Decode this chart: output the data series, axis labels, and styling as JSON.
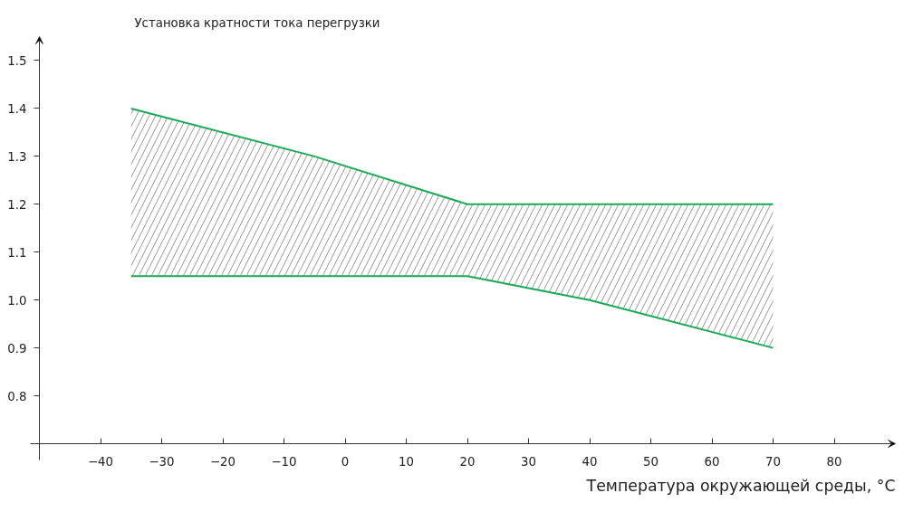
{
  "chart_data": {
    "type": "line",
    "ylabel": "Установка кратности тока перегрузки",
    "xlabel": "Температура окружающей среды, °C",
    "x": [
      -35,
      -5,
      20,
      40,
      70
    ],
    "series": [
      {
        "color": "#1aaa55",
        "values": [
          1.4,
          1.3,
          1.2,
          1.2,
          1.2
        ],
        "lower": [
          1.05,
          1.05,
          1.05,
          1.0,
          0.9
        ],
        "upper": [
          1.4,
          1.3,
          1.2,
          1.2,
          1.2
        ]
      },
      {
        "color": "#1aaa55",
        "values": [
          1.05,
          1.05,
          1.05,
          1.0,
          0.9
        ]
      }
    ],
    "xlim": [
      -50,
      90
    ],
    "ylim": [
      0.7,
      1.55
    ],
    "xticks": [
      -40,
      -30,
      -20,
      -10,
      0,
      10,
      20,
      30,
      40,
      50,
      60,
      70,
      80
    ],
    "yticks": [
      0.8,
      0.9,
      {
        "value": 1.0,
        "label": "1.0"
      },
      1.1,
      1.2,
      1.3,
      1.4,
      1.5
    ],
    "grid": false,
    "marker": "none",
    "line_style": "solid"
  }
}
